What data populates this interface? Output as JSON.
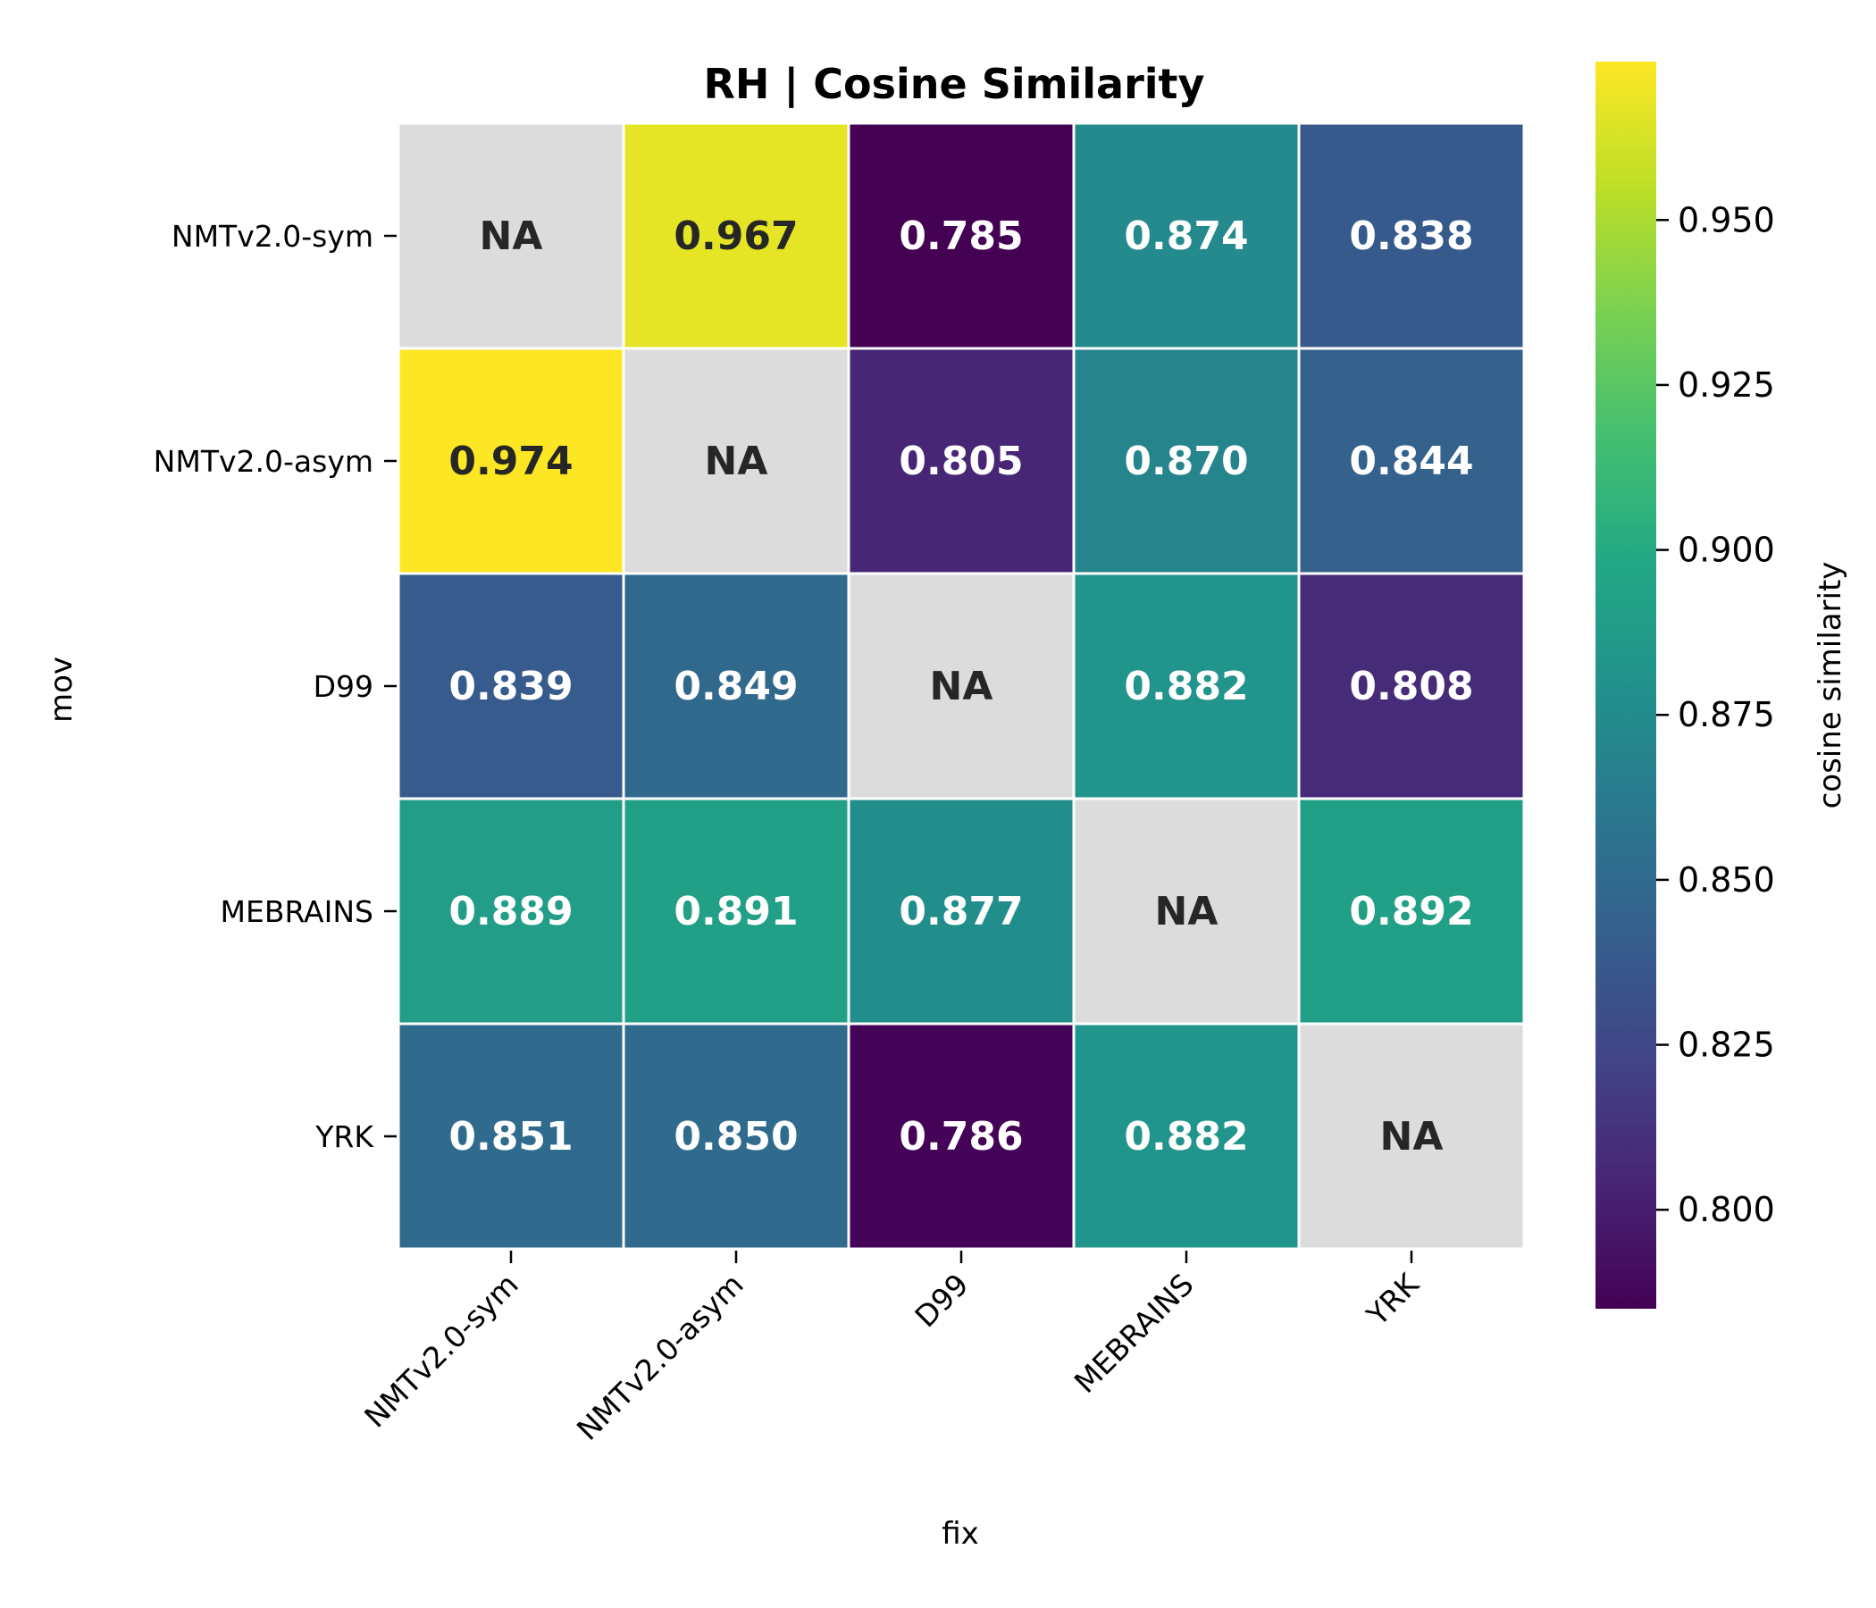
{
  "chart_data": {
    "type": "heatmap",
    "title": "RH | Cosine Similarity",
    "xlabel": "fix",
    "ylabel": "mov",
    "x_categories": [
      "NMTv2.0-sym",
      "NMTv2.0-asym",
      "D99",
      "MEBRAINS",
      "YRK"
    ],
    "y_categories": [
      "NMTv2.0-sym",
      "NMTv2.0-asym",
      "D99",
      "MEBRAINS",
      "YRK"
    ],
    "values": [
      [
        null,
        0.967,
        0.785,
        0.874,
        0.838
      ],
      [
        0.974,
        null,
        0.805,
        0.87,
        0.844
      ],
      [
        0.839,
        0.849,
        null,
        0.882,
        0.808
      ],
      [
        0.889,
        0.891,
        0.877,
        null,
        0.892
      ],
      [
        0.851,
        0.85,
        0.786,
        0.882,
        null
      ]
    ],
    "cell_labels": [
      [
        "NA",
        "0.967",
        "0.785",
        "0.874",
        "0.838"
      ],
      [
        "0.974",
        "NA",
        "0.805",
        "0.870",
        "0.844"
      ],
      [
        "0.839",
        "0.849",
        "NA",
        "0.882",
        "0.808"
      ],
      [
        "0.889",
        "0.891",
        "0.877",
        "NA",
        "0.892"
      ],
      [
        "0.851",
        "0.850",
        "0.786",
        "0.882",
        "NA"
      ]
    ],
    "missing_label": "NA",
    "missing_color": "#dcdcdc",
    "colormap": "viridis",
    "vmin": 0.785,
    "vmax": 0.974,
    "colorbar": {
      "label": "cosine similarity",
      "ticks": [
        0.8,
        0.825,
        0.85,
        0.875,
        0.9,
        0.925,
        0.95
      ],
      "tick_labels": [
        "0.800",
        "0.825",
        "0.850",
        "0.875",
        "0.900",
        "0.925",
        "0.950"
      ]
    },
    "grid": false,
    "legend": "colorbar-right"
  }
}
